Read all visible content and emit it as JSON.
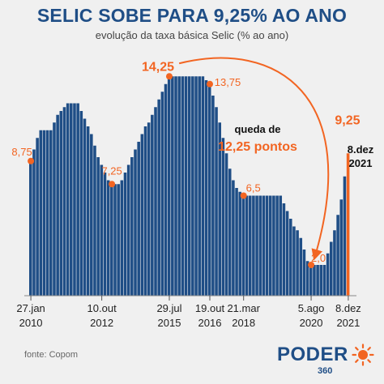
{
  "header": {
    "title": "SELIC SOBE PARA 9,25% AO ANO",
    "subtitle": "evolução da taxa básica Selic (% ao ano)"
  },
  "footer": {
    "source": "fonte: Copom"
  },
  "logo": {
    "text": "PODER",
    "number": "360",
    "sun_color": "#f26522",
    "text_color": "#1f4e86"
  },
  "chart_data": {
    "type": "bar",
    "title": "SELIC SOBE PARA 9,25% AO ANO",
    "subtitle": "evolução da taxa básica Selic (% ao ano)",
    "xlabel": "",
    "ylabel": "",
    "ylim": [
      0,
      15
    ],
    "grid": false,
    "bar_color": "#1f4e86",
    "highlight_color": "#f26522",
    "values": [
      8.75,
      9.5,
      10.25,
      10.75,
      10.75,
      10.75,
      10.75,
      11.25,
      11.75,
      12.0,
      12.25,
      12.5,
      12.5,
      12.5,
      12.5,
      12.0,
      11.5,
      11.0,
      10.5,
      9.75,
      9.0,
      8.5,
      8.0,
      7.5,
      7.25,
      7.25,
      7.25,
      7.5,
      8.0,
      8.5,
      9.0,
      9.5,
      10.0,
      10.5,
      11.0,
      11.25,
      11.75,
      12.25,
      12.75,
      13.25,
      13.75,
      14.25,
      14.25,
      14.25,
      14.25,
      14.25,
      14.25,
      14.25,
      14.25,
      14.25,
      14.25,
      14.25,
      14.0,
      13.75,
      13.0,
      12.25,
      11.25,
      10.25,
      9.25,
      8.25,
      7.5,
      7.0,
      6.75,
      6.5,
      6.5,
      6.5,
      6.5,
      6.5,
      6.5,
      6.5,
      6.5,
      6.5,
      6.5,
      6.5,
      6.5,
      6.0,
      5.5,
      5.0,
      4.5,
      4.25,
      3.75,
      3.0,
      2.25,
      2.0,
      2.0,
      2.0,
      2.0,
      2.0,
      2.75,
      3.5,
      4.25,
      5.25,
      6.25,
      7.75,
      9.25
    ],
    "highlight_last": true,
    "point_labels": [
      {
        "text": "8,75",
        "index": 0
      },
      {
        "text": "7,25",
        "index": 24
      },
      {
        "text": "14,25",
        "index": 41
      },
      {
        "text": "13,75",
        "index": 53
      },
      {
        "text": "6,5",
        "index": 63
      },
      {
        "text": "2,0",
        "index": 83
      },
      {
        "text": "9,25",
        "index": 94
      }
    ],
    "last_value_date": [
      "8.dez",
      "2021"
    ],
    "annotation": {
      "line1": "queda de",
      "line2": "12,25 pontos"
    },
    "x_ticks": [
      {
        "index": 0,
        "line1": "27.jan",
        "line2": "2010"
      },
      {
        "index": 21,
        "line1": "10.out",
        "line2": "2012"
      },
      {
        "index": 41,
        "line1": "29.jul",
        "line2": "2015"
      },
      {
        "index": 53,
        "line1": "19.out",
        "line2": "2016"
      },
      {
        "index": 63,
        "line1": "21.mar",
        "line2": "2018"
      },
      {
        "index": 83,
        "line1": "5.ago",
        "line2": "2020"
      },
      {
        "index": 94,
        "line1": "8.dez",
        "line2": "2021"
      }
    ]
  }
}
